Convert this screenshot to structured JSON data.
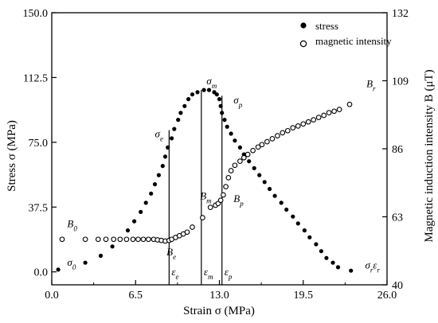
{
  "chart_data": {
    "type": "scatter",
    "title": "",
    "xlabel": "Strain σ (MPa)",
    "ylabel_left": "Stress σ (MPa)",
    "ylabel_right": "Magnetic induction intensity B (μT)",
    "xlim": [
      0,
      26
    ],
    "ylim_left": [
      -7.5,
      150
    ],
    "ylim_right": [
      40,
      132
    ],
    "x_ticks": [
      "0.0",
      "6.5",
      "13.0",
      "19.5",
      "26.0"
    ],
    "y_left_ticks": [
      "0.0",
      "37.5",
      "75.0",
      "112.5",
      "150.0"
    ],
    "y_right_ticks": [
      "40",
      "63",
      "86",
      "109",
      "132"
    ],
    "grid": false,
    "legend_position": "top-right",
    "series": [
      {
        "name": "stress",
        "marker": "filled-circle",
        "axis": "left",
        "points": [
          [
            0.5,
            1.3
          ],
          [
            2.6,
            5.3
          ],
          [
            3.8,
            9.3
          ],
          [
            4.7,
            14.7
          ],
          [
            5.3,
            19.0
          ],
          [
            5.9,
            24.0
          ],
          [
            6.4,
            29.3
          ],
          [
            6.9,
            34.7
          ],
          [
            7.3,
            40.0
          ],
          [
            7.7,
            45.3
          ],
          [
            8.0,
            50.7
          ],
          [
            8.3,
            56.0
          ],
          [
            8.6,
            61.3
          ],
          [
            8.8,
            66.7
          ],
          [
            9.0,
            72.0
          ],
          [
            9.3,
            77.3
          ],
          [
            9.5,
            82.7
          ],
          [
            9.8,
            88.0
          ],
          [
            10.0,
            92.0
          ],
          [
            10.3,
            96.0
          ],
          [
            10.6,
            100.0
          ],
          [
            10.9,
            102.7
          ],
          [
            11.3,
            104.0
          ],
          [
            11.8,
            105.3
          ],
          [
            12.2,
            105.3
          ],
          [
            12.6,
            104.0
          ],
          [
            12.8,
            102.7
          ],
          [
            13.0,
            100.0
          ],
          [
            13.1,
            96.0
          ],
          [
            13.2,
            92.0
          ],
          [
            13.4,
            88.0
          ],
          [
            13.6,
            84.0
          ],
          [
            13.9,
            80.0
          ],
          [
            14.2,
            76.0
          ],
          [
            14.6,
            72.0
          ],
          [
            14.9,
            68.0
          ],
          [
            15.3,
            64.0
          ],
          [
            15.7,
            60.0
          ],
          [
            16.1,
            56.0
          ],
          [
            16.5,
            52.0
          ],
          [
            16.9,
            48.0
          ],
          [
            17.3,
            44.0
          ],
          [
            17.8,
            40.0
          ],
          [
            18.2,
            36.0
          ],
          [
            18.7,
            32.0
          ],
          [
            19.1,
            28.0
          ],
          [
            19.6,
            24.0
          ],
          [
            20.0,
            20.0
          ],
          [
            20.5,
            16.0
          ],
          [
            20.9,
            12.0
          ],
          [
            21.3,
            8.0
          ],
          [
            21.8,
            5.3
          ],
          [
            22.2,
            2.7
          ],
          [
            23.2,
            0.7
          ]
        ]
      },
      {
        "name": "magnetic intensity",
        "marker": "open-circle",
        "axis": "right",
        "points": [
          [
            0.8,
            55.4
          ],
          [
            2.6,
            55.4
          ],
          [
            3.6,
            55.4
          ],
          [
            4.2,
            55.4
          ],
          [
            4.8,
            55.4
          ],
          [
            5.3,
            55.4
          ],
          [
            5.8,
            55.4
          ],
          [
            6.3,
            55.4
          ],
          [
            6.7,
            55.4
          ],
          [
            7.1,
            55.4
          ],
          [
            7.5,
            55.4
          ],
          [
            7.9,
            55.4
          ],
          [
            8.2,
            55.2
          ],
          [
            8.5,
            55.0
          ],
          [
            8.8,
            54.8
          ],
          [
            9.1,
            55.0
          ],
          [
            9.3,
            55.4
          ],
          [
            9.6,
            56.0
          ],
          [
            9.9,
            56.6
          ],
          [
            10.2,
            57.2
          ],
          [
            10.5,
            57.8
          ],
          [
            10.9,
            59.5
          ],
          [
            11.7,
            62.7
          ],
          [
            12.3,
            66.2
          ],
          [
            12.7,
            66.9
          ],
          [
            12.9,
            67.5
          ],
          [
            13.1,
            68.6
          ],
          [
            13.3,
            70.4
          ],
          [
            13.5,
            73.2
          ],
          [
            13.7,
            76.2
          ],
          [
            13.9,
            78.6
          ],
          [
            14.2,
            80.4
          ],
          [
            14.6,
            81.8
          ],
          [
            14.9,
            83.0
          ],
          [
            15.2,
            84.1
          ],
          [
            15.6,
            85.4
          ],
          [
            16.0,
            86.6
          ],
          [
            16.3,
            87.4
          ],
          [
            16.7,
            88.4
          ],
          [
            17.1,
            89.4
          ],
          [
            17.5,
            90.4
          ],
          [
            17.9,
            91.4
          ],
          [
            18.3,
            92.1
          ],
          [
            18.7,
            93.1
          ],
          [
            19.1,
            93.7
          ],
          [
            19.5,
            94.4
          ],
          [
            19.9,
            95.1
          ],
          [
            20.3,
            95.8
          ],
          [
            20.7,
            96.6
          ],
          [
            21.1,
            97.3
          ],
          [
            21.5,
            98.2
          ],
          [
            21.9,
            98.7
          ],
          [
            22.3,
            99.3
          ],
          [
            23.1,
            101.0
          ]
        ]
      }
    ],
    "markers": [
      {
        "label": "ε",
        "sub": "e",
        "x": 9.1,
        "y_top": 82.0
      },
      {
        "label": "ε",
        "sub": "m",
        "x": 11.6,
        "y_top": 105.3
      },
      {
        "label": "ε",
        "sub": "p",
        "x": 13.2,
        "y_top": 102.0
      }
    ],
    "annotations": [
      {
        "text": "σ",
        "sub": "0",
        "axis": "left",
        "x": 1.2,
        "y": 3.5
      },
      {
        "text": "B",
        "sub": "0",
        "axis": "left",
        "x": 1.2,
        "y": 26.0
      },
      {
        "text": "B",
        "sub": "e",
        "axis": "left",
        "x": 8.9,
        "y": 9.5
      },
      {
        "text": "σ",
        "sub": "e",
        "axis": "left",
        "x": 8.0,
        "y": 78.0
      },
      {
        "text": "σ",
        "sub": "m",
        "axis": "left",
        "x": 12.0,
        "y": 108.5
      },
      {
        "text": "σ",
        "sub": "p",
        "axis": "left",
        "x": 14.1,
        "y": 97.5
      },
      {
        "text": "B",
        "sub": "m",
        "axis": "left",
        "x": 11.5,
        "y": 42.0
      },
      {
        "text": "B",
        "sub": "p",
        "axis": "left",
        "x": 14.1,
        "y": 40.5
      },
      {
        "text": "B",
        "sub": "r",
        "axis": "left",
        "x": 24.4,
        "y": 107.0
      },
      {
        "text": "σ",
        "sub": "r",
        "axis": "left",
        "x": 24.3,
        "y": 2.0
      },
      {
        "text": "ε",
        "sub": "r",
        "axis": "left",
        "x": 24.9,
        "y": 2.0
      }
    ]
  }
}
